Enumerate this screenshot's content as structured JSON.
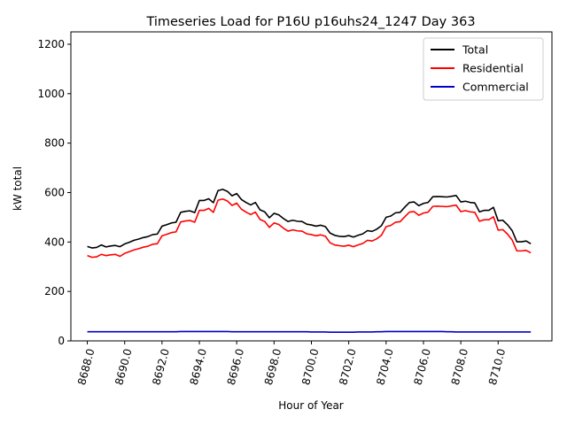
{
  "chart_data": {
    "type": "line",
    "title": "Timeseries Load for P16U p16uhs24_1247  Day 363",
    "xlabel": "Hour of Year",
    "ylabel": "kW total",
    "xlim": [
      8687.12,
      8712.88
    ],
    "ylim": [
      0,
      1250
    ],
    "xticks": [
      8688,
      8690,
      8692,
      8694,
      8696,
      8698,
      8700,
      8702,
      8704,
      8706,
      8708,
      8710
    ],
    "xtick_labels": [
      "8688.0",
      "8690.0",
      "8692.0",
      "8694.0",
      "8696.0",
      "8698.0",
      "8700.0",
      "8702.0",
      "8704.0",
      "8706.0",
      "8708.0",
      "8710.0"
    ],
    "yticks": [
      0,
      200,
      400,
      600,
      800,
      1000,
      1200
    ],
    "ytick_labels": [
      "0",
      "200",
      "400",
      "600",
      "800",
      "1000",
      "1200"
    ],
    "legend_position": "top-right",
    "x": [
      8688.0,
      8688.25,
      8688.5,
      8688.75,
      8689.0,
      8689.25,
      8689.5,
      8689.75,
      8690.0,
      8690.25,
      8690.5,
      8690.75,
      8691.0,
      8691.25,
      8691.5,
      8691.75,
      8692.0,
      8692.25,
      8692.5,
      8692.75,
      8693.0,
      8693.25,
      8693.5,
      8693.75,
      8694.0,
      8694.25,
      8694.5,
      8694.75,
      8695.0,
      8695.25,
      8695.5,
      8695.75,
      8696.0,
      8696.25,
      8696.5,
      8696.75,
      8697.0,
      8697.25,
      8697.5,
      8697.75,
      8698.0,
      8698.25,
      8698.5,
      8698.75,
      8699.0,
      8699.25,
      8699.5,
      8699.75,
      8700.0,
      8700.25,
      8700.5,
      8700.75,
      8701.0,
      8701.25,
      8701.5,
      8701.75,
      8702.0,
      8702.25,
      8702.5,
      8702.75,
      8703.0,
      8703.25,
      8703.5,
      8703.75,
      8704.0,
      8704.25,
      8704.5,
      8704.75,
      8705.0,
      8705.25,
      8705.5,
      8705.75,
      8706.0,
      8706.25,
      8706.5,
      8706.75,
      8707.0,
      8707.25,
      8707.5,
      8707.75,
      8708.0,
      8708.25,
      8708.5,
      8708.75,
      8709.0,
      8709.25,
      8709.5,
      8709.75,
      8710.0,
      8710.25,
      8710.5,
      8710.75,
      8711.0,
      8711.25,
      8711.5,
      8711.75
    ],
    "series": [
      {
        "name": "Total",
        "color": "#000000",
        "values": [
          382,
          376,
          378,
          388,
          380,
          384,
          386,
          381,
          392,
          399,
          407,
          412,
          418,
          422,
          430,
          432,
          464,
          470,
          477,
          480,
          520,
          524,
          526,
          519,
          568,
          568,
          575,
          559,
          608,
          613,
          605,
          587,
          596,
          572,
          560,
          550,
          560,
          530,
          522,
          498,
          516,
          510,
          495,
          483,
          488,
          484,
          483,
          472,
          469,
          464,
          468,
          462,
          436,
          427,
          423,
          422,
          426,
          420,
          427,
          433,
          446,
          443,
          452,
          466,
          500,
          505,
          518,
          520,
          541,
          560,
          562,
          547,
          556,
          560,
          583,
          584,
          583,
          582,
          585,
          588,
          562,
          565,
          560,
          558,
          522,
          528,
          528,
          540,
          486,
          488,
          470,
          446,
          401,
          401,
          404,
          393
        ]
      },
      {
        "name": "Residential",
        "color": "#ff0000",
        "values": [
          345,
          338,
          340,
          350,
          345,
          348,
          350,
          342,
          354,
          361,
          368,
          373,
          379,
          383,
          391,
          393,
          425,
          431,
          438,
          441,
          481,
          485,
          487,
          480,
          528,
          528,
          536,
          520,
          569,
          574,
          566,
          548,
          557,
          533,
          521,
          511,
          521,
          491,
          483,
          459,
          477,
          471,
          456,
          444,
          449,
          445,
          444,
          433,
          430,
          425,
          429,
          423,
          397,
          388,
          385,
          383,
          387,
          381,
          388,
          394,
          407,
          404,
          413,
          427,
          462,
          467,
          480,
          482,
          502,
          521,
          523,
          508,
          517,
          521,
          544,
          545,
          544,
          543,
          546,
          549,
          523,
          527,
          522,
          520,
          484,
          490,
          490,
          502,
          448,
          450,
          432,
          408,
          364,
          364,
          366,
          356
        ]
      },
      {
        "name": "Commercial",
        "color": "#0000cc",
        "values": [
          37,
          37,
          37,
          37,
          37,
          37,
          37,
          37,
          37,
          37,
          37,
          37,
          37,
          37,
          37,
          37,
          37,
          37,
          37,
          37,
          38,
          38,
          38,
          38,
          38,
          38,
          38,
          38,
          38,
          38,
          38,
          37,
          37,
          37,
          37,
          37,
          37,
          37,
          37,
          37,
          37,
          37,
          37,
          37,
          37,
          37,
          37,
          37,
          36,
          36,
          36,
          36,
          35,
          35,
          35,
          35,
          35,
          35,
          36,
          36,
          36,
          36,
          37,
          37,
          38,
          38,
          38,
          38,
          38,
          38,
          38,
          38,
          38,
          38,
          38,
          38,
          38,
          37,
          37,
          36,
          36,
          36,
          36,
          36,
          36,
          36,
          36,
          36,
          36,
          36,
          36,
          36,
          36,
          36,
          36,
          36
        ]
      }
    ]
  }
}
